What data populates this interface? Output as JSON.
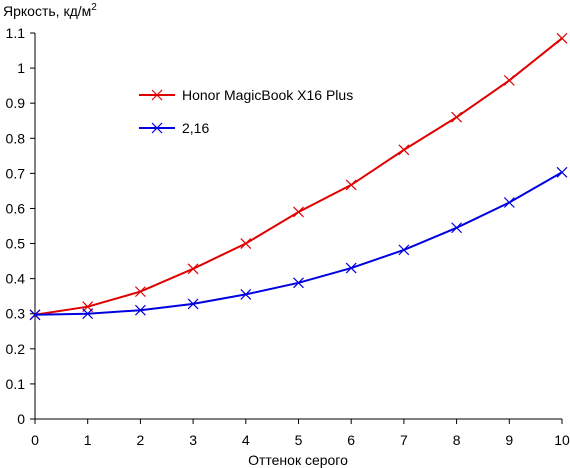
{
  "chart_data": {
    "type": "line",
    "ylabel": "Яркость, кд/м",
    "ylabel_superscript": "2",
    "xlabel": "Оттенок серого",
    "xlim": [
      0,
      10
    ],
    "ylim": [
      0,
      1.1
    ],
    "x_ticks": [
      "0",
      "1",
      "2",
      "3",
      "4",
      "5",
      "6",
      "7",
      "8",
      "9",
      "10"
    ],
    "y_ticks": [
      "0",
      "0.1",
      "0.2",
      "0.3",
      "0.4",
      "0.5",
      "0.6",
      "0.7",
      "0.8",
      "0.9",
      "1",
      "1.1"
    ],
    "grid": false,
    "legend_position": "upper-left",
    "x": [
      0,
      1,
      2,
      3,
      4,
      5,
      6,
      7,
      8,
      9,
      10
    ],
    "series": [
      {
        "name": "Honor MagicBook X16 Plus",
        "color": "#e00000",
        "marker": "x",
        "values": [
          0.297,
          0.32,
          0.363,
          0.428,
          0.5,
          0.59,
          0.667,
          0.767,
          0.86,
          0.965,
          1.085
        ]
      },
      {
        "name": "2,16",
        "color": "#0000e0",
        "marker": "x",
        "values": [
          0.297,
          0.3,
          0.31,
          0.328,
          0.355,
          0.388,
          0.43,
          0.482,
          0.545,
          0.617,
          0.703
        ]
      }
    ]
  }
}
